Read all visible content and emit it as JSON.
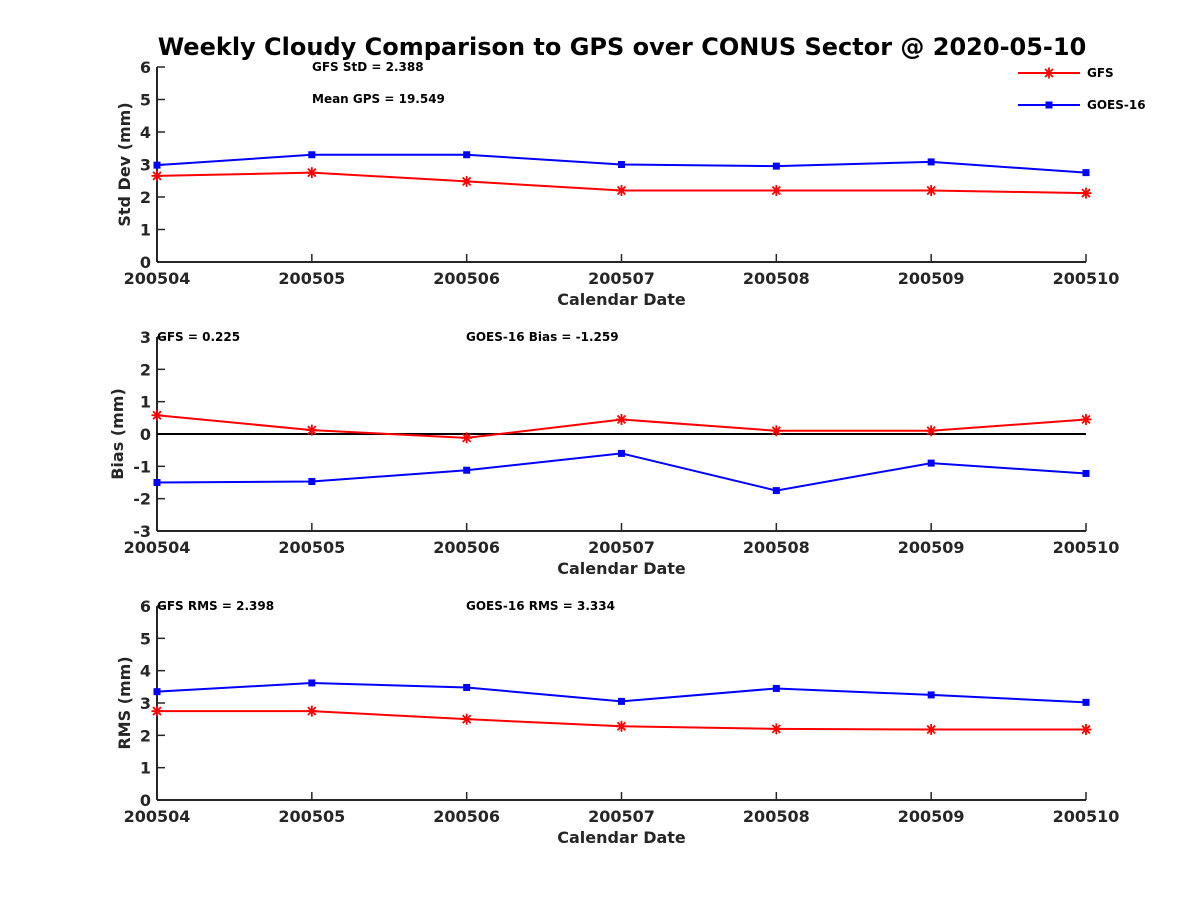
{
  "figure": {
    "title": "Weekly Cloudy Comparison to GPS over CONUS Sector @ 2020-05-10"
  },
  "legend": {
    "placement": "top-right",
    "entries": [
      {
        "name": "GFS",
        "color": "#ff0000",
        "marker": "asterisk"
      },
      {
        "name": "GOES-16",
        "color": "#0000ff",
        "marker": "square"
      }
    ]
  },
  "chart_data": [
    {
      "type": "line",
      "categories": [
        "200504",
        "200505",
        "200506",
        "200507",
        "200508",
        "200509",
        "200510"
      ],
      "xlabel": "Calendar Date",
      "ylabel": "Std Dev (mm)",
      "ylim": [
        0,
        6
      ],
      "yticks": [
        0,
        1,
        2,
        3,
        4,
        5,
        6
      ],
      "zero_line": false,
      "annotations": [
        "GFS StD = 2.388",
        "Mean GPS = 19.549"
      ],
      "series": [
        {
          "name": "GFS",
          "color": "#ff0000",
          "marker": "asterisk",
          "values": [
            2.65,
            2.75,
            2.48,
            2.2,
            2.2,
            2.2,
            2.12
          ]
        },
        {
          "name": "GOES-16",
          "color": "#0000ff",
          "marker": "square",
          "values": [
            2.98,
            3.3,
            3.3,
            3.0,
            2.95,
            3.08,
            2.75
          ]
        }
      ]
    },
    {
      "type": "line",
      "categories": [
        "200504",
        "200505",
        "200506",
        "200507",
        "200508",
        "200509",
        "200510"
      ],
      "xlabel": "Calendar Date",
      "ylabel": "Bias (mm)",
      "ylim": [
        -3,
        3
      ],
      "yticks": [
        -3,
        -2,
        -1,
        0,
        1,
        2,
        3
      ],
      "zero_line": true,
      "annotations": [
        "GFS = 0.225",
        "GOES-16 Bias  = -1.259"
      ],
      "series": [
        {
          "name": "GFS",
          "color": "#ff0000",
          "marker": "asterisk",
          "values": [
            0.58,
            0.12,
            -0.12,
            0.45,
            0.1,
            0.1,
            0.45
          ]
        },
        {
          "name": "GOES-16",
          "color": "#0000ff",
          "marker": "square",
          "values": [
            -1.5,
            -1.47,
            -1.12,
            -0.6,
            -1.75,
            -0.9,
            -1.22
          ]
        }
      ]
    },
    {
      "type": "line",
      "categories": [
        "200504",
        "200505",
        "200506",
        "200507",
        "200508",
        "200509",
        "200510"
      ],
      "xlabel": "Calendar Date",
      "ylabel": "RMS (mm)",
      "ylim": [
        0,
        6
      ],
      "yticks": [
        0,
        1,
        2,
        3,
        4,
        5,
        6
      ],
      "zero_line": false,
      "annotations": [
        "GFS RMS = 2.398",
        "GOES-16 RMS = 3.334"
      ],
      "series": [
        {
          "name": "GFS",
          "color": "#ff0000",
          "marker": "asterisk",
          "values": [
            2.75,
            2.75,
            2.5,
            2.28,
            2.2,
            2.18,
            2.18
          ]
        },
        {
          "name": "GOES-16",
          "color": "#0000ff",
          "marker": "square",
          "values": [
            3.35,
            3.62,
            3.48,
            3.05,
            3.45,
            3.25,
            3.02
          ]
        }
      ]
    }
  ]
}
